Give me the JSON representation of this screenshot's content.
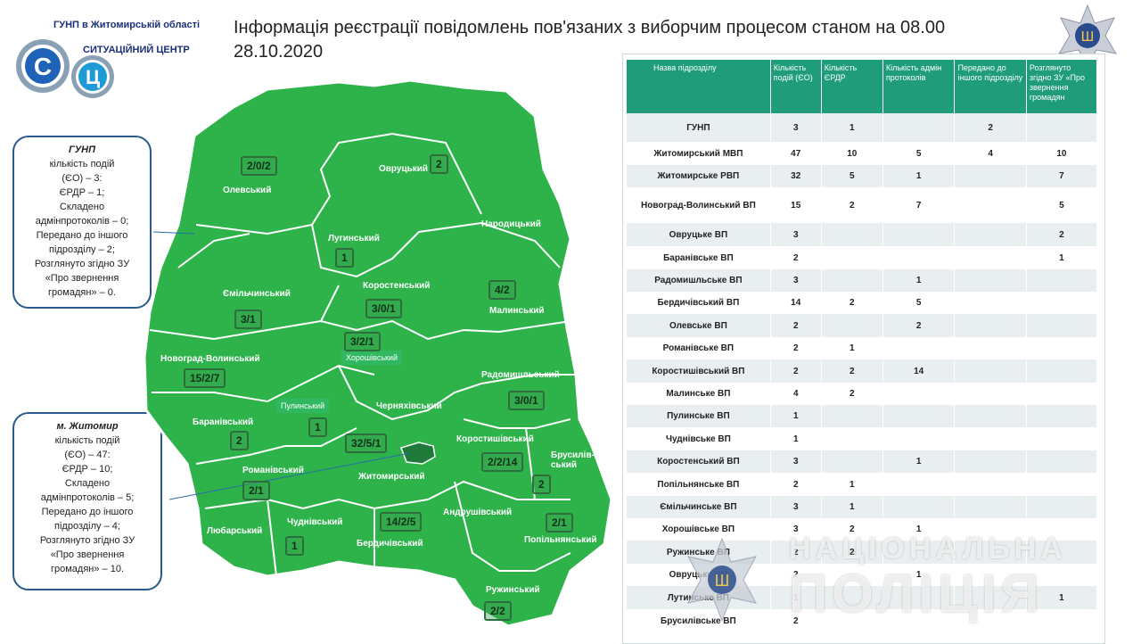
{
  "header": {
    "org_name": "ГУНП в Житомирській області",
    "unit_name": "СИТУАЦІЙНИЙ ЦЕНТР",
    "logo_letters": [
      "С",
      "Ц"
    ],
    "title": "Інформація реєстрації повідомлень пов'язаних з виборчим процесом станом на 08.00   28.10.2020"
  },
  "info_boxes": [
    {
      "heading": "ГУНП",
      "lines": [
        "кількість подій",
        "(ЄО) – 3:",
        "ЄРДР – 1;",
        "Складено",
        "адмінпротоколів – 0;",
        "Передано до іншого",
        "підрозділу – 2;",
        "Розглянуто згідно ЗУ",
        "«Про звернення",
        "громадян» – 0."
      ]
    },
    {
      "heading": "м. Житомир",
      "lines": [
        "кількість подій",
        "(ЄО) – 47:",
        "ЄРДР – 10;",
        "Складено",
        "адмінпротоколів – 5;",
        "Передано до іншого",
        "підрозділу – 4;",
        "Розглянуто згідно ЗУ",
        "«Про звернення",
        "громадян» – 10."
      ]
    }
  ],
  "map": {
    "fill_color": "#2db34a",
    "border_color": "#ffffff",
    "city_color": "#1f7a3a",
    "regions": [
      {
        "name": "Олевський",
        "count": "2/0/2"
      },
      {
        "name": "Овруцький",
        "count": "2"
      },
      {
        "name": "Народицький",
        "count": ""
      },
      {
        "name": "Лугинський",
        "count": "1"
      },
      {
        "name": "Коростенський",
        "count": "3/0/1"
      },
      {
        "name": "Малинський",
        "count": "4/2"
      },
      {
        "name": "Ємільчинський",
        "count": "3/1"
      },
      {
        "name": "Новоград-Волинський",
        "count": "15/2/7"
      },
      {
        "name": "Хорошівський",
        "count": "3/2/1"
      },
      {
        "name": "Радомишльський",
        "count": "3/0/1"
      },
      {
        "name": "Пулинський",
        "count": "1"
      },
      {
        "name": "Черняхівський",
        "count": ""
      },
      {
        "name": "Баранівський",
        "count": "2"
      },
      {
        "name": "Житомирський",
        "count": "32/5/1"
      },
      {
        "name": "Коростишівський",
        "count": "2/2/14"
      },
      {
        "name": "Брусилів-ський",
        "count": "2"
      },
      {
        "name": "Романівський",
        "count": "2/1"
      },
      {
        "name": "Любарський",
        "count": ""
      },
      {
        "name": "Чуднівський",
        "count": "1"
      },
      {
        "name": "Бердичівський",
        "count": "14/2/5"
      },
      {
        "name": "Андрушівський",
        "count": ""
      },
      {
        "name": "Попільнянський",
        "count": "2/1"
      },
      {
        "name": "Ружинський",
        "count": "2/2"
      }
    ]
  },
  "table": {
    "headers": [
      "Назва підрозділу",
      "Кількість подій (ЄО)",
      "Кількість ЄРДР",
      "Кількість адмін протоколів",
      "Передано до іншого підрозділу",
      "Розглянуто згідно ЗУ «Про звернення громадян"
    ],
    "rows": [
      [
        "ГУНП",
        "3",
        "1",
        "",
        "2",
        ""
      ],
      [
        "Житомирський МВП",
        "47",
        "10",
        "5",
        "4",
        "10"
      ],
      [
        "Житомирське РВП",
        "32",
        "5",
        "1",
        "",
        "7"
      ],
      [
        "Новоград-Волинський ВП",
        "15",
        "2",
        "7",
        "",
        "5"
      ],
      [
        "Овруцьке ВП",
        "3",
        "",
        "",
        "",
        "2"
      ],
      [
        "Баранівське ВП",
        "2",
        "",
        "",
        "",
        "1"
      ],
      [
        "Радомишльське ВП",
        "3",
        "",
        "1",
        "",
        ""
      ],
      [
        "Бердичівський ВП",
        "14",
        "2",
        "5",
        "",
        ""
      ],
      [
        "Олевське ВП",
        "2",
        "",
        "2",
        "",
        ""
      ],
      [
        "Романівське ВП",
        "2",
        "1",
        "",
        "",
        ""
      ],
      [
        "Коростишівський ВП",
        "2",
        "2",
        "14",
        "",
        ""
      ],
      [
        "Малинське ВП",
        "4",
        "2",
        "",
        "",
        ""
      ],
      [
        "Пулинське ВП",
        "1",
        "",
        "",
        "",
        ""
      ],
      [
        "Чуднівське ВП",
        "1",
        "",
        "",
        "",
        ""
      ],
      [
        "Коростенський ВП",
        "3",
        "",
        "1",
        "",
        ""
      ],
      [
        "Попільнянське ВП",
        "2",
        "1",
        "",
        "",
        ""
      ],
      [
        "Ємільчинське ВП",
        "3",
        "1",
        "",
        "",
        ""
      ],
      [
        "Хорошівське ВП",
        "3",
        "2",
        "1",
        "",
        ""
      ],
      [
        "Ружинське ВП",
        "2",
        "2",
        "",
        "",
        ""
      ],
      [
        "Овруцьке ВП",
        "2",
        "",
        "1",
        "",
        ""
      ],
      [
        "Лутинське ВП",
        "1",
        "",
        "",
        "",
        "1"
      ],
      [
        "Брусилівське ВП",
        "2",
        "",
        "",
        "",
        ""
      ]
    ]
  },
  "watermark": {
    "line1": "НАЦІОНАЛЬНА",
    "line2": "ПОЛІЦІЯ"
  }
}
